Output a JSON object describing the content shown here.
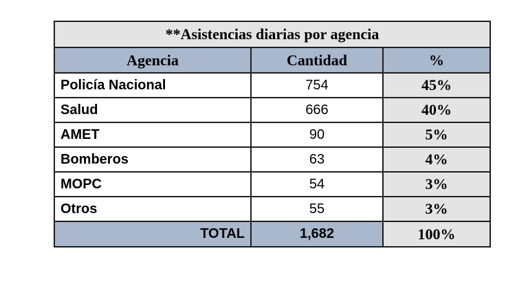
{
  "table": {
    "title": "**Asistencias diarias por agencia",
    "headers": {
      "agency": "Agencia",
      "quantity": "Cantidad",
      "percent": "%"
    },
    "rows": [
      {
        "agency": "Policía Nacional",
        "quantity": "754",
        "percent": "45%"
      },
      {
        "agency": "Salud",
        "quantity": "666",
        "percent": "40%"
      },
      {
        "agency": "AMET",
        "quantity": "90",
        "percent": "5%"
      },
      {
        "agency": "Bomberos",
        "quantity": "63",
        "percent": "4%"
      },
      {
        "agency": "MOPC",
        "quantity": "54",
        "percent": "3%"
      },
      {
        "agency": "Otros",
        "quantity": "55",
        "percent": "3%"
      }
    ],
    "total": {
      "label": "TOTAL",
      "quantity": "1,682",
      "percent": "100%"
    }
  },
  "colors": {
    "header_fill": "#a9b8cc",
    "gray_fill": "#e4e4e4",
    "border": "#1e1e1e"
  }
}
